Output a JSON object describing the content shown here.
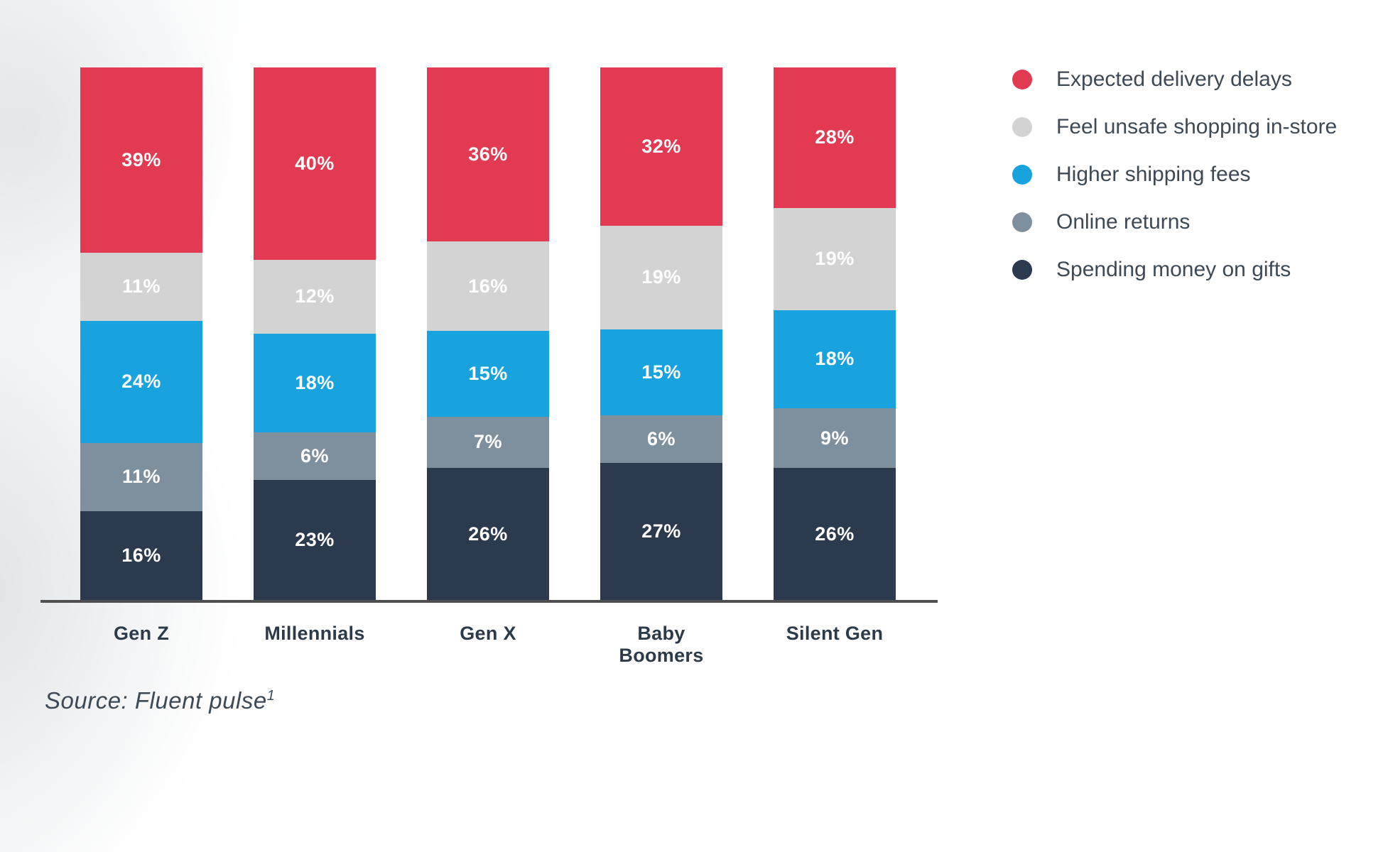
{
  "chart_data": {
    "type": "bar",
    "variant": "stacked-100-percent",
    "orientation": "vertical",
    "grid": false,
    "legend_position": "right",
    "value_suffix": "%",
    "categories": [
      "Gen Z",
      "Millennials",
      "Gen X",
      "Baby Boomers",
      "Silent Gen"
    ],
    "series": [
      {
        "name": "Expected delivery delays",
        "color": "#e23a52",
        "values": [
          39,
          40,
          36,
          32,
          28
        ]
      },
      {
        "name": "Feel unsafe shopping in-store",
        "color": "#d3d3d4",
        "values": [
          11,
          12,
          16,
          19,
          19
        ]
      },
      {
        "name": "Higher shipping fees",
        "color": "#18a3df",
        "values": [
          24,
          18,
          15,
          15,
          18
        ]
      },
      {
        "name": "Online returns",
        "color": "#7e909d",
        "values": [
          11,
          6,
          7,
          6,
          9
        ]
      },
      {
        "name": "Spending money on gifts",
        "color": "#2c3a4d",
        "values": [
          16,
          23,
          26,
          27,
          26
        ]
      }
    ],
    "bar_label_color": "#ffffff",
    "axis_line_color": "#4f4f4f",
    "category_label_color": "#2d3a4a",
    "legend_text_color": "#3d4954"
  },
  "source": {
    "text": "Source: Fluent pulse",
    "superscript": "1"
  }
}
